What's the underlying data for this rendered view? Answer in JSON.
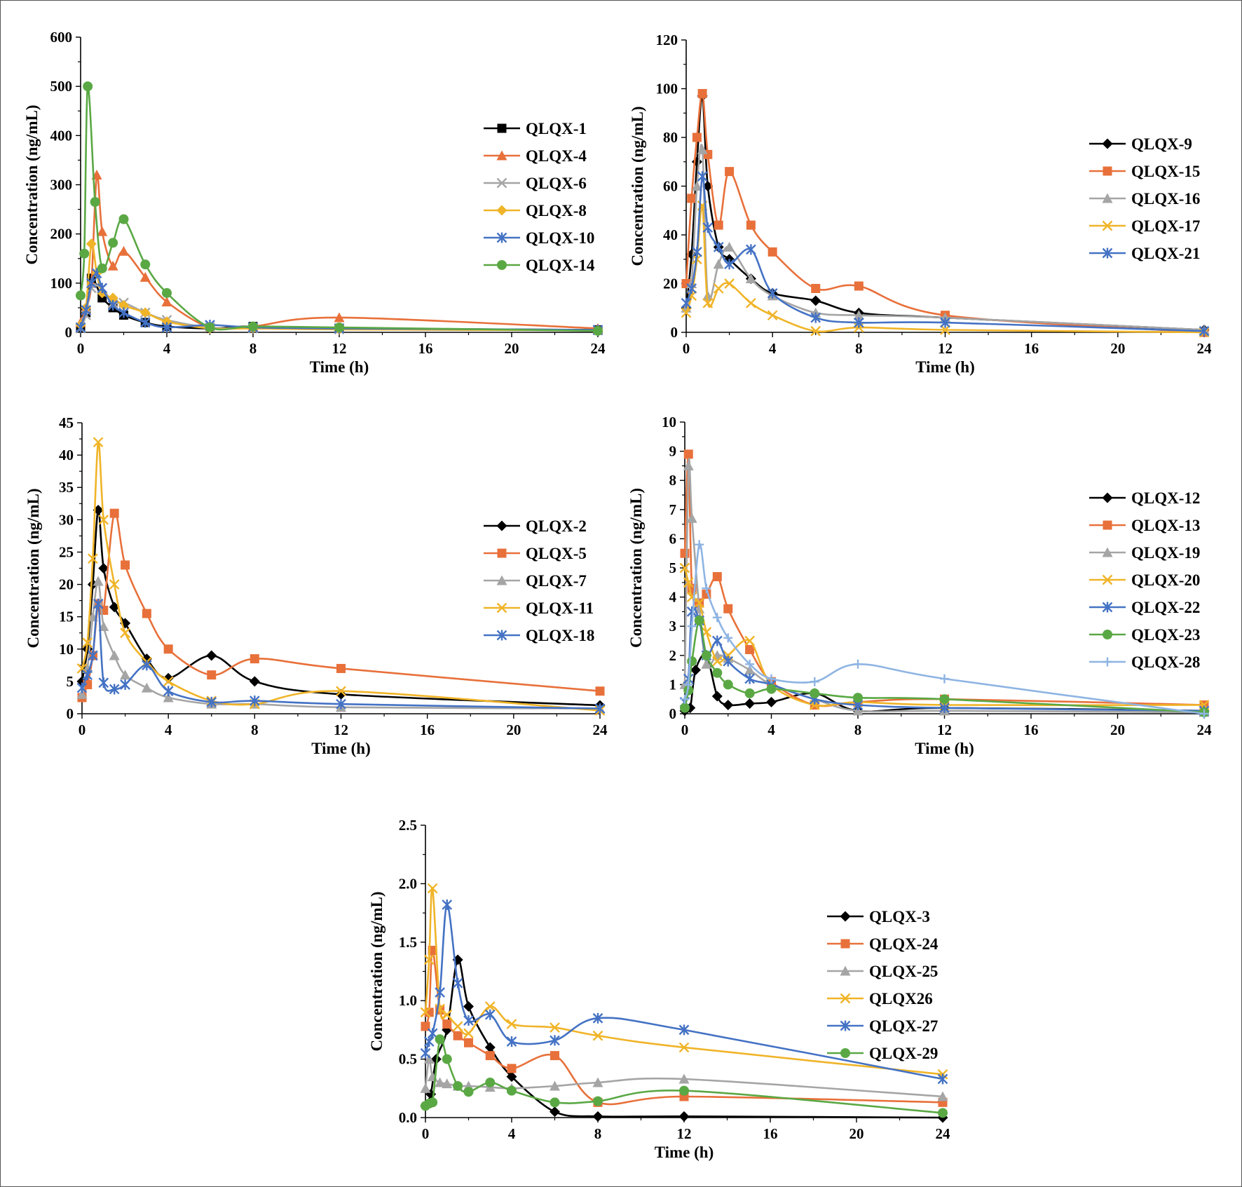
{
  "colors": {
    "black": "#000000",
    "orange": "#E8703A",
    "gray": "#A5A5A5",
    "gold": "#F0B428",
    "blue": "#4472C4",
    "green": "#5AA844",
    "lightblue": "#8EB4E3"
  },
  "chart_data": [
    {
      "type": "line",
      "title": "",
      "xlabel": "Time (h)",
      "ylabel": "Concentration (ng/mL)",
      "xlim": [
        0,
        24
      ],
      "ylim": [
        0,
        600
      ],
      "xticks": [
        "0",
        "4",
        "8",
        "12",
        "16",
        "20",
        "24"
      ],
      "yticks": [
        "0",
        "100",
        "200",
        "300",
        "400",
        "500",
        "600"
      ],
      "legend_position": "right",
      "series": [
        {
          "name": "QLQX-1",
          "color": "black",
          "marker": "square",
          "x": [
            0,
            0.25,
            0.5,
            1,
            1.5,
            2,
            3,
            4,
            6,
            8,
            12,
            24
          ],
          "y": [
            10,
            40,
            110,
            70,
            50,
            35,
            20,
            12,
            8,
            12,
            8,
            5
          ]
        },
        {
          "name": "QLQX-4",
          "color": "orange",
          "marker": "triangle",
          "x": [
            0,
            0.25,
            0.5,
            0.75,
            1,
            1.5,
            2,
            3,
            4,
            6,
            8,
            12,
            24
          ],
          "y": [
            20,
            50,
            100,
            320,
            205,
            135,
            165,
            112,
            62,
            10,
            12,
            30,
            8
          ]
        },
        {
          "name": "QLQX-6",
          "color": "gray",
          "marker": "x",
          "x": [
            0,
            0.25,
            0.5,
            1,
            1.5,
            2,
            3,
            4,
            6,
            8,
            12,
            24
          ],
          "y": [
            8,
            35,
            90,
            90,
            60,
            60,
            40,
            25,
            10,
            8,
            6,
            4
          ]
        },
        {
          "name": "QLQX-8",
          "color": "gold",
          "marker": "diamond",
          "x": [
            0,
            0.25,
            0.5,
            0.75,
            1,
            1.5,
            2,
            3,
            4,
            6,
            8,
            12,
            24
          ],
          "y": [
            15,
            50,
            180,
            120,
            80,
            70,
            55,
            40,
            22,
            8,
            8,
            6,
            4
          ]
        },
        {
          "name": "QLQX-10",
          "color": "blue",
          "marker": "star",
          "x": [
            0,
            0.25,
            0.5,
            0.75,
            1,
            1.5,
            2,
            3,
            4,
            6,
            8,
            12,
            24
          ],
          "y": [
            10,
            45,
            100,
            120,
            90,
            55,
            40,
            20,
            10,
            15,
            10,
            8,
            5
          ]
        },
        {
          "name": "QLQX-14",
          "color": "green",
          "marker": "circle",
          "x": [
            0,
            0.17,
            0.33,
            0.67,
            1,
            1.5,
            2,
            3,
            4,
            6,
            8,
            12,
            24
          ],
          "y": [
            75,
            160,
            500,
            265,
            130,
            182,
            230,
            138,
            80,
            10,
            12,
            10,
            3
          ]
        }
      ]
    },
    {
      "type": "line",
      "title": "",
      "xlabel": "Time (h)",
      "ylabel": "Concentration (ng/mL)",
      "xlim": [
        0,
        24
      ],
      "ylim": [
        0,
        120
      ],
      "xticks": [
        "0",
        "4",
        "8",
        "12",
        "16",
        "20",
        "24"
      ],
      "yticks": [
        "0",
        "20",
        "40",
        "60",
        "80",
        "100",
        "120"
      ],
      "legend_position": "right",
      "series": [
        {
          "name": "QLQX-9",
          "color": "black",
          "marker": "diamond",
          "x": [
            0,
            0.25,
            0.5,
            0.75,
            1,
            1.5,
            2,
            3,
            4,
            6,
            8,
            12,
            24
          ],
          "y": [
            10,
            32,
            70,
            97,
            60,
            35,
            30,
            22,
            16,
            13,
            8,
            6,
            1
          ]
        },
        {
          "name": "QLQX-15",
          "color": "orange",
          "marker": "square",
          "x": [
            0,
            0.25,
            0.5,
            0.75,
            1,
            1.5,
            2,
            3,
            4,
            6,
            8,
            12,
            24
          ],
          "y": [
            20,
            55,
            80,
            98,
            73,
            44,
            66,
            44,
            33,
            18,
            19,
            7,
            0
          ]
        },
        {
          "name": "QLQX-16",
          "color": "gray",
          "marker": "triangle",
          "x": [
            0,
            0.25,
            0.5,
            0.75,
            1,
            1.5,
            2,
            3,
            4,
            6,
            8,
            12,
            24
          ],
          "y": [
            10,
            20,
            60,
            75,
            15,
            28,
            35,
            22,
            15,
            8,
            7,
            6,
            1
          ]
        },
        {
          "name": "QLQX-17",
          "color": "gold",
          "marker": "x",
          "x": [
            0,
            0.25,
            0.5,
            0.75,
            1,
            1.5,
            2,
            3,
            4,
            6,
            8,
            12,
            24
          ],
          "y": [
            8,
            15,
            30,
            52,
            12,
            18,
            20,
            12,
            7,
            0.5,
            2,
            1,
            0
          ]
        },
        {
          "name": "QLQX-21",
          "color": "blue",
          "marker": "star",
          "x": [
            0,
            0.25,
            0.5,
            0.75,
            1,
            1.5,
            2,
            3,
            4,
            6,
            8,
            12,
            24
          ],
          "y": [
            12,
            18,
            33,
            64,
            43,
            35,
            28,
            34,
            16,
            6,
            4,
            4,
            0.5
          ]
        }
      ]
    },
    {
      "type": "line",
      "title": "",
      "xlabel": "Time (h)",
      "ylabel": "Concentration (ng/mL)",
      "xlim": [
        0,
        24
      ],
      "ylim": [
        0,
        45
      ],
      "xticks": [
        "0",
        "4",
        "8",
        "12",
        "16",
        "20",
        "24"
      ],
      "yticks": [
        "0",
        "5",
        "10",
        "15",
        "20",
        "25",
        "30",
        "35",
        "40",
        "45"
      ],
      "legend_position": "right",
      "series": [
        {
          "name": "QLQX-2",
          "color": "black",
          "marker": "diamond",
          "x": [
            0,
            0.25,
            0.5,
            0.75,
            1,
            1.5,
            2,
            3,
            4,
            6,
            8,
            12,
            24
          ],
          "y": [
            5,
            10,
            20,
            31.5,
            22.5,
            16.5,
            14,
            8.5,
            5.5,
            9,
            5,
            3,
            1.3
          ]
        },
        {
          "name": "QLQX-5",
          "color": "orange",
          "marker": "square",
          "x": [
            0,
            0.25,
            0.5,
            0.75,
            1,
            1.5,
            2,
            3,
            4,
            6,
            8,
            12,
            24
          ],
          "y": [
            2.5,
            4.5,
            9,
            17,
            16,
            31,
            23,
            15.5,
            10,
            6,
            8.5,
            7,
            3.5
          ]
        },
        {
          "name": "QLQX-7",
          "color": "gray",
          "marker": "triangle",
          "x": [
            0,
            0.25,
            0.5,
            0.75,
            1,
            1.5,
            2,
            3,
            4,
            6,
            8,
            12,
            24
          ],
          "y": [
            3,
            7,
            15,
            20.5,
            13.5,
            9,
            6,
            4,
            2.5,
            1.5,
            1.5,
            1,
            0.8
          ]
        },
        {
          "name": "QLQX-11",
          "color": "gold",
          "marker": "x",
          "x": [
            0,
            0.25,
            0.5,
            0.75,
            1,
            1.5,
            2,
            3,
            4,
            6,
            8,
            12,
            24
          ],
          "y": [
            7,
            11,
            24,
            42,
            30,
            20,
            12.5,
            8,
            5,
            2,
            1.5,
            3.5,
            0.5
          ]
        },
        {
          "name": "QLQX-18",
          "color": "blue",
          "marker": "star",
          "x": [
            0,
            0.25,
            0.5,
            0.75,
            1,
            1.5,
            2,
            3,
            4,
            6,
            8,
            12,
            24
          ],
          "y": [
            4,
            6,
            9,
            17,
            4.8,
            3.8,
            4.5,
            7.5,
            3.5,
            1.8,
            2,
            1.5,
            0.8
          ]
        }
      ]
    },
    {
      "type": "line",
      "title": "",
      "xlabel": "Time (h)",
      "ylabel": "Concentration (ng/mL)",
      "xlim": [
        0,
        24
      ],
      "ylim": [
        0,
        10
      ],
      "xticks": [
        "0",
        "4",
        "8",
        "12",
        "16",
        "20",
        "24"
      ],
      "yticks": [
        "0",
        "1",
        "2",
        "3",
        "4",
        "5",
        "6",
        "7",
        "8",
        "9",
        "10"
      ],
      "legend_position": "right",
      "series": [
        {
          "name": "QLQX-12",
          "color": "black",
          "marker": "diamond",
          "x": [
            0,
            0.25,
            0.5,
            1,
            1.5,
            2,
            3,
            4,
            6,
            8,
            12,
            24
          ],
          "y": [
            0.1,
            0.2,
            1.5,
            2,
            0.6,
            0.3,
            0.35,
            0.4,
            0.7,
            0.1,
            0.2,
            0.1
          ]
        },
        {
          "name": "QLQX-13",
          "color": "orange",
          "marker": "square",
          "x": [
            0,
            0.17,
            0.33,
            0.67,
            1,
            1.5,
            2,
            3,
            4,
            6,
            8,
            12,
            24
          ],
          "y": [
            5.5,
            8.9,
            4.3,
            3.8,
            4.1,
            4.7,
            3.6,
            2.2,
            1.1,
            0.3,
            0.4,
            0.5,
            0.3
          ]
        },
        {
          "name": "QLQX-19",
          "color": "gray",
          "marker": "triangle",
          "x": [
            0,
            0.17,
            0.33,
            0.67,
            1,
            1.5,
            2,
            3,
            4,
            6,
            8,
            12,
            24
          ],
          "y": [
            1,
            8.5,
            6.7,
            3.6,
            1.7,
            2,
            1.9,
            1.5,
            1,
            0.5,
            0.1,
            0.1,
            0.05
          ]
        },
        {
          "name": "QLQX-20",
          "color": "gold",
          "marker": "x",
          "x": [
            0,
            0.17,
            0.33,
            0.67,
            1,
            1.5,
            2,
            3,
            4,
            6,
            8,
            12,
            24
          ],
          "y": [
            5,
            4.5,
            4,
            3.8,
            2.8,
            1.8,
            2,
            2.5,
            1,
            0.3,
            0.4,
            0.3,
            0.3
          ]
        },
        {
          "name": "QLQX-22",
          "color": "blue",
          "marker": "star",
          "x": [
            0,
            0.17,
            0.33,
            0.67,
            1,
            1.5,
            2,
            3,
            4,
            6,
            8,
            12,
            24
          ],
          "y": [
            0.4,
            1.2,
            3.5,
            3.2,
            2.0,
            2.5,
            1.8,
            1.2,
            1.0,
            0.5,
            0.3,
            0.2,
            0.1
          ]
        },
        {
          "name": "QLQX-23",
          "color": "green",
          "marker": "circle",
          "x": [
            0,
            0.17,
            0.33,
            0.67,
            1,
            1.5,
            2,
            3,
            4,
            6,
            8,
            12,
            24
          ],
          "y": [
            0.2,
            0.8,
            1.8,
            3.2,
            2,
            1.4,
            1,
            0.7,
            0.85,
            0.7,
            0.55,
            0.5,
            0.05
          ]
        },
        {
          "name": "QLQX-28",
          "color": "lightblue",
          "marker": "plus",
          "x": [
            0,
            0.17,
            0.33,
            0.67,
            1,
            1.5,
            2,
            3,
            4,
            6,
            8,
            12,
            24
          ],
          "y": [
            0.5,
            1,
            3,
            5.8,
            4.3,
            3.3,
            2.6,
            1.7,
            1.2,
            1.1,
            1.7,
            1.2,
            0
          ]
        }
      ]
    },
    {
      "type": "line",
      "title": "",
      "xlabel": "Time (h)",
      "ylabel": "Concentration (ng/mL)",
      "xlim": [
        0,
        24
      ],
      "ylim": [
        0,
        2.5
      ],
      "xticks": [
        "0",
        "4",
        "8",
        "12",
        "16",
        "20",
        "24"
      ],
      "yticks": [
        "0.0",
        "0.5",
        "1.0",
        "1.5",
        "2.0",
        "2.5"
      ],
      "legend_position": "right",
      "series": [
        {
          "name": "QLQX-3",
          "color": "black",
          "marker": "diamond",
          "x": [
            0,
            0.25,
            0.5,
            1,
            1.5,
            2,
            3,
            4,
            6,
            8,
            12,
            24
          ],
          "y": [
            0.1,
            0.2,
            0.5,
            0.75,
            1.35,
            0.95,
            0.6,
            0.35,
            0.05,
            0.01,
            0.01,
            0.0
          ]
        },
        {
          "name": "QLQX-24",
          "color": "orange",
          "marker": "square",
          "x": [
            0,
            0.17,
            0.33,
            0.67,
            1,
            1.5,
            2,
            3,
            4,
            6,
            8,
            12,
            24
          ],
          "y": [
            0.78,
            0.9,
            1.43,
            0.92,
            0.8,
            0.7,
            0.64,
            0.53,
            0.42,
            0.53,
            0.13,
            0.18,
            0.13
          ]
        },
        {
          "name": "QLQX-25",
          "color": "gray",
          "marker": "triangle",
          "x": [
            0,
            0.17,
            0.33,
            0.67,
            1,
            1.5,
            2,
            3,
            4,
            6,
            8,
            12,
            24
          ],
          "y": [
            0.25,
            0.5,
            0.35,
            0.3,
            0.29,
            0.27,
            0.27,
            0.26,
            0.25,
            0.27,
            0.3,
            0.33,
            0.18
          ]
        },
        {
          "name": "QLQX26",
          "color": "gold",
          "marker": "x",
          "x": [
            0,
            0.17,
            0.33,
            0.67,
            1,
            1.5,
            2,
            3,
            4,
            6,
            8,
            12,
            24
          ],
          "y": [
            0.9,
            1.35,
            1.96,
            0.93,
            0.88,
            0.78,
            0.72,
            0.95,
            0.8,
            0.77,
            0.7,
            0.6,
            0.37
          ]
        },
        {
          "name": "QLQX-27",
          "color": "blue",
          "marker": "star",
          "x": [
            0,
            0.17,
            0.33,
            0.67,
            1,
            1.5,
            2,
            3,
            4,
            6,
            8,
            12,
            24
          ],
          "y": [
            0.55,
            0.65,
            0.72,
            1.07,
            1.82,
            1.15,
            0.83,
            0.88,
            0.65,
            0.66,
            0.85,
            0.75,
            0.33
          ]
        },
        {
          "name": "QLQX-29",
          "color": "green",
          "marker": "circle",
          "x": [
            0,
            0.17,
            0.33,
            0.67,
            1,
            1.5,
            2,
            3,
            4,
            6,
            8,
            12,
            24
          ],
          "y": [
            0.1,
            0.12,
            0.13,
            0.67,
            0.5,
            0.27,
            0.22,
            0.3,
            0.23,
            0.13,
            0.14,
            0.23,
            0.04
          ]
        }
      ]
    }
  ]
}
